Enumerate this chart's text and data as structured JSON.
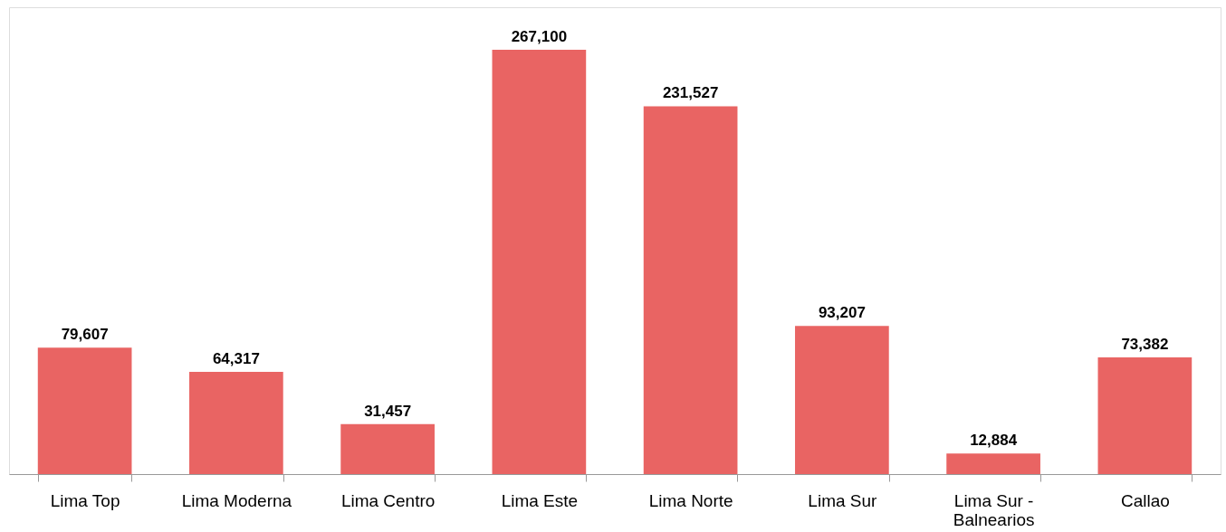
{
  "chart_data": {
    "type": "bar",
    "categories": [
      "Lima Top",
      "Lima Moderna",
      "Lima Centro",
      "Lima Este",
      "Lima Norte",
      "Lima Sur",
      "Lima Sur - Balnearios",
      "Callao"
    ],
    "values": [
      79607,
      64317,
      31457,
      267100,
      231527,
      93207,
      12884,
      73382
    ],
    "value_labels": [
      "79,607",
      "64,317",
      "31,457",
      "267,100",
      "231,527",
      "93,207",
      "12,884",
      "73,382"
    ],
    "color": "#e96463"
  }
}
